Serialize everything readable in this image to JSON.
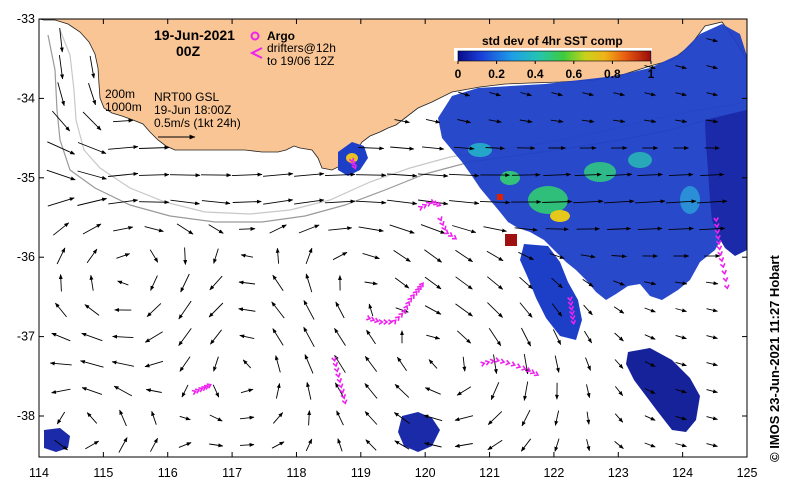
{
  "map": {
    "date_line": "19-Jun-2021",
    "hour_line": "00Z",
    "argo_label": "Argo",
    "drifters_label": "drifters@12h",
    "drifters_range": "to 19/06 12Z",
    "depth_200": "200m",
    "depth_1000": "1000m",
    "product": "NRT00 GSL",
    "product_time": "19-Jun 18:00Z",
    "scale_label": "0.5m/s (1kt 24h)",
    "colorbar_title": "std dev of 4hr SST comp",
    "colorbar_ticks": [
      "0",
      "0.2",
      "0.4",
      "0.6",
      "0.8",
      "1"
    ],
    "credit": "© IMOS 23-Jun-2021 11:27 Hobart",
    "x_ticks": [
      "114",
      "115",
      "116",
      "117",
      "118",
      "119",
      "120",
      "121",
      "122",
      "123",
      "124",
      "125"
    ],
    "y_ticks": [
      "-33",
      "-34",
      "-35",
      "-36",
      "-37",
      "-38"
    ],
    "colors": {
      "land": "#f9c595",
      "ocean": "#ffffff",
      "drifter": "#ee22ee",
      "isobath_200": "#c8c8c8",
      "isobath_1000": "#9a9a9a",
      "sst_low": "#1020a0",
      "sst_mid": "#22bb66",
      "sst_high": "#dd2200"
    }
  }
}
